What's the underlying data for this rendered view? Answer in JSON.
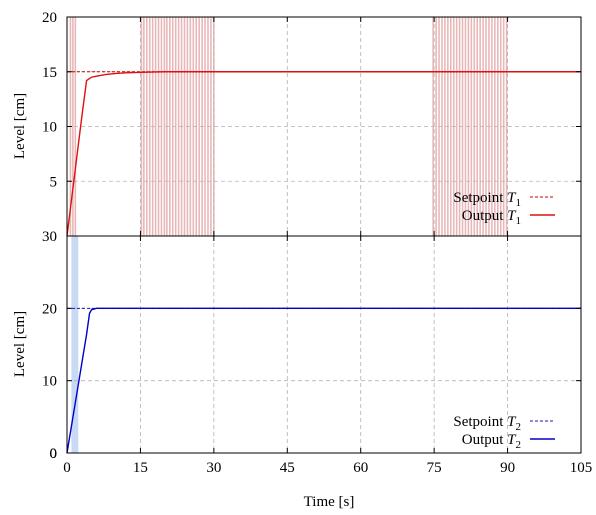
{
  "chart_data": [
    {
      "type": "line",
      "ylabel": "Level [cm]",
      "xlim": [
        0,
        105
      ],
      "ylim": [
        0,
        20
      ],
      "xticks": [
        0,
        15,
        30,
        45,
        60,
        75,
        90,
        105
      ],
      "yticks": [
        5,
        10,
        15,
        20
      ],
      "grid": true,
      "legend_position": "bottom-right",
      "series": [
        {
          "name": "Setpoint T1",
          "name_main": "Setpoint ",
          "name_var": "T",
          "name_sub": "1",
          "style": "dashed",
          "color": "#cc0000",
          "x": [
            0,
            105
          ],
          "y": [
            15,
            15
          ]
        },
        {
          "name": "Output T1",
          "name_main": "Output ",
          "name_var": "T",
          "name_sub": "1",
          "style": "solid",
          "color": "#dd1111",
          "x": [
            0,
            1,
            2,
            3,
            4,
            5,
            6,
            8,
            10,
            12,
            15,
            20,
            30,
            45,
            60,
            75,
            90,
            105
          ],
          "y": [
            0,
            3.6,
            7.2,
            10.8,
            14.2,
            14.5,
            14.6,
            14.75,
            14.85,
            14.9,
            14.95,
            15,
            15,
            15,
            15,
            15,
            15,
            15
          ]
        }
      ],
      "events": {
        "color": "#e8b8b8",
        "x": [
          0.7,
          1.2,
          1.7,
          15.2,
          15.7,
          16.3,
          16.9,
          17.5,
          18.1,
          18.7,
          19.3,
          19.9,
          20.4,
          21.0,
          21.6,
          22.2,
          22.8,
          23.4,
          24.0,
          24.6,
          25.2,
          25.8,
          26.4,
          27.0,
          27.6,
          28.2,
          28.8,
          29.4,
          30.0,
          74.8,
          75.4,
          76.0,
          76.6,
          77.2,
          77.8,
          78.4,
          79.0,
          79.6,
          80.2,
          80.8,
          81.4,
          82.0,
          82.6,
          83.2,
          83.8,
          84.4,
          85.0,
          85.6,
          86.2,
          86.8,
          87.4,
          88.0,
          88.6,
          89.2,
          89.8
        ]
      }
    },
    {
      "type": "line",
      "xlabel": "Time [s]",
      "ylabel": "Level [cm]",
      "xlim": [
        0,
        105
      ],
      "ylim": [
        0,
        30
      ],
      "xticks": [
        0,
        15,
        30,
        45,
        60,
        75,
        90,
        105
      ],
      "yticks": [
        0,
        10,
        20,
        30
      ],
      "grid": true,
      "legend_position": "bottom-right",
      "series": [
        {
          "name": "Setpoint T2",
          "name_main": "Setpoint ",
          "name_var": "T",
          "name_sub": "2",
          "style": "dashed",
          "color": "#1a1aaa",
          "x": [
            0,
            105
          ],
          "y": [
            20,
            20
          ]
        },
        {
          "name": "Output T2",
          "name_main": "Output ",
          "name_var": "T",
          "name_sub": "2",
          "style": "solid",
          "color": "#0000cc",
          "x": [
            0,
            1,
            2,
            3,
            4,
            4.6,
            5,
            6,
            8,
            105
          ],
          "y": [
            0,
            4.1,
            8.2,
            12.3,
            16.4,
            19.3,
            19.8,
            20,
            20,
            20
          ]
        }
      ],
      "events": {
        "color": "#c7d9f5",
        "x_band": [
          0.9,
          2.3
        ]
      }
    }
  ]
}
